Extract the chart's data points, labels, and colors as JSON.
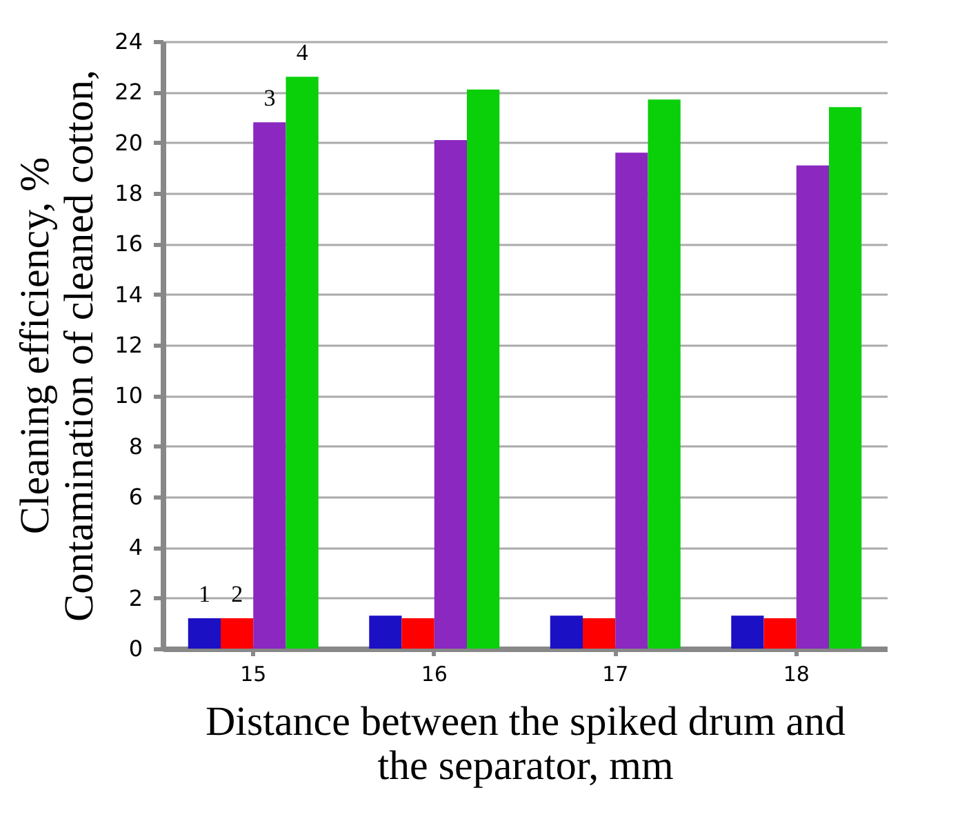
{
  "chart_data": {
    "type": "bar",
    "xlabel": "Distance between the spiked drum and\nthe separator, mm",
    "ylabel": "Cleaning efficiency, %\nContamination of cleaned cotton,",
    "categories": [
      "15",
      "16",
      "17",
      "18"
    ],
    "series": [
      {
        "name": "1",
        "color": "#1c10c4",
        "values": [
          1.2,
          1.3,
          1.3,
          1.3
        ]
      },
      {
        "name": "2",
        "color": "#ff0000",
        "values": [
          1.2,
          1.2,
          1.2,
          1.2
        ]
      },
      {
        "name": "3",
        "color": "#8a28c0",
        "values": [
          20.8,
          20.1,
          19.6,
          19.1
        ]
      },
      {
        "name": "4",
        "color": "#0ad00a",
        "values": [
          22.6,
          22.1,
          21.7,
          21.4
        ]
      }
    ],
    "ylim": [
      0,
      24
    ],
    "yticks": [
      0,
      2,
      4,
      6,
      8,
      10,
      12,
      14,
      16,
      18,
      20,
      22,
      24
    ],
    "grid": "y",
    "legend": false
  }
}
